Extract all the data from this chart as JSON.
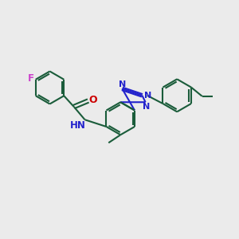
{
  "background_color": "#ebebeb",
  "bond_color": "#1a5c3a",
  "triazole_color": "#2222cc",
  "NH_color": "#2222cc",
  "O_color": "#cc0000",
  "F_color": "#cc44cc",
  "line_width": 1.5,
  "figsize": [
    3.0,
    3.0
  ],
  "dpi": 100,
  "xlim": [
    0,
    12
  ],
  "ylim": [
    0,
    10
  ]
}
